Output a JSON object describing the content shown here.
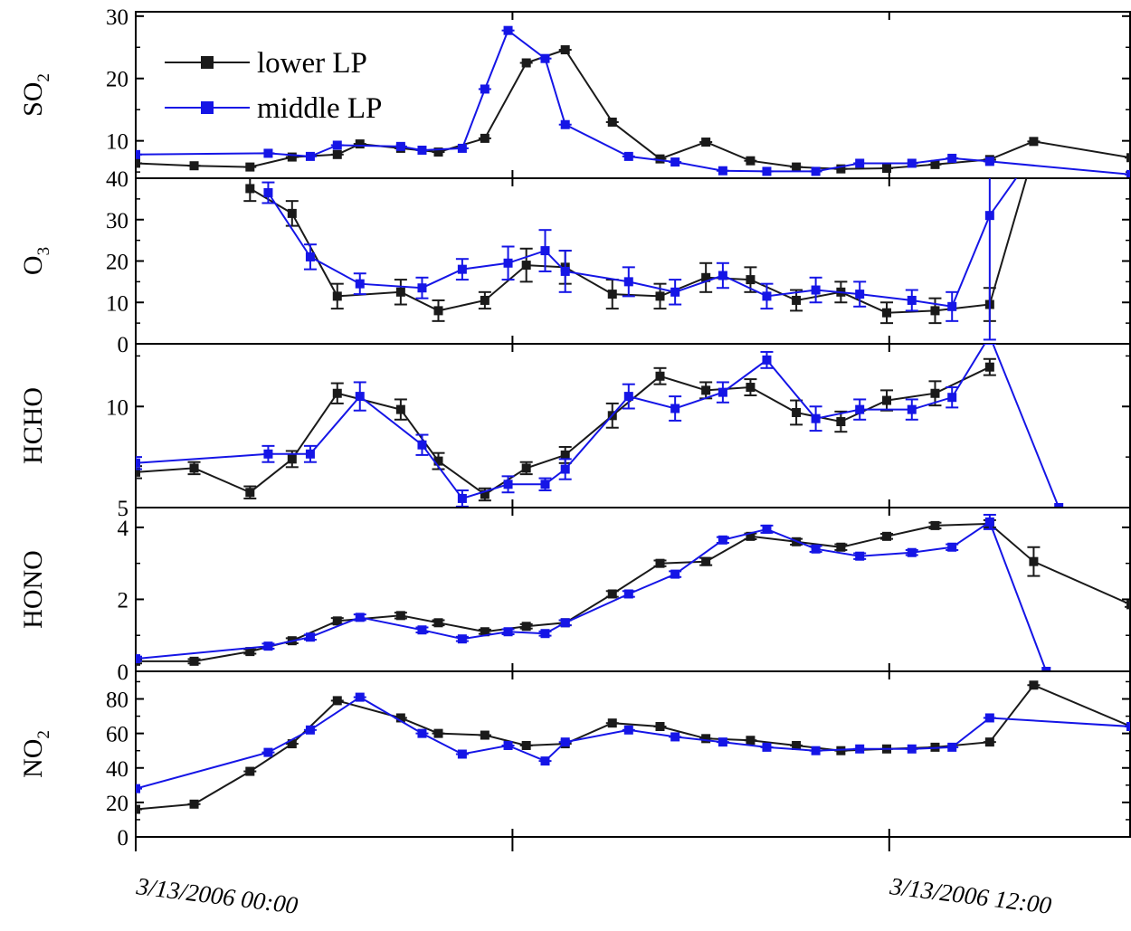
{
  "colors": {
    "lower": "#1a1a1a",
    "middle": "#1515e6",
    "frame": "#000000"
  },
  "legend": {
    "lower_label": "lower LP",
    "middle_label": "middle LP",
    "placement": "top-left"
  },
  "x_axis": {
    "tick_labels": [
      "3/13/2006 00:00",
      "3/13/2006 12:00"
    ],
    "tick_values": [
      0,
      12
    ],
    "minor_tick_values": [
      6
    ],
    "xlim": [
      0,
      15.85
    ]
  },
  "chart_data": {
    "type": "line",
    "x_unit": "hours after 3/13/2006 00:00",
    "panels": [
      {
        "key": "so2",
        "ylabel": "SO",
        "ylabel_sub": "2",
        "ylim": [
          4,
          30.7
        ],
        "ticks": [
          10,
          20,
          30
        ],
        "tick_labels": [
          "10",
          "20",
          "30"
        ],
        "series": [
          {
            "name": "lower LP",
            "errorbars": false,
            "x": [
              0,
              0.93,
              1.82,
              2.49,
              3.21,
              3.57,
              4.22,
              4.82,
              5.56,
              6.22,
              6.84,
              7.59,
              8.35,
              9.08,
              9.79,
              10.52,
              11.23,
              11.96,
              12.73,
              13.6,
              14.3,
              15.85
            ],
            "y": [
              6.4,
              6.0,
              5.8,
              7.4,
              7.8,
              9.5,
              8.8,
              8.2,
              10.4,
              22.5,
              24.6,
              13.0,
              7.1,
              9.8,
              6.8,
              5.8,
              5.5,
              5.6,
              6.2,
              7.0,
              9.9,
              7.3
            ],
            "err": []
          },
          {
            "name": "middle LP",
            "errorbars": false,
            "x": [
              0,
              2.11,
              2.78,
              3.21,
              4.22,
              4.56,
              5.2,
              5.56,
              5.93,
              6.52,
              6.84,
              7.85,
              8.59,
              9.35,
              10.05,
              10.83,
              11.53,
              12.36,
              13.0,
              13.6,
              15.85
            ],
            "y": [
              7.8,
              8.0,
              7.5,
              9.3,
              9.1,
              8.5,
              8.8,
              18.3,
              27.7,
              23.2,
              12.6,
              7.5,
              6.6,
              5.2,
              5.1,
              5.1,
              6.4,
              6.4,
              7.2,
              6.7,
              4.6
            ],
            "err": []
          }
        ]
      },
      {
        "key": "o3",
        "ylabel": "O",
        "ylabel_sub": "3",
        "ylim": [
          0,
          40
        ],
        "ticks": [
          0,
          10,
          20,
          30,
          40
        ],
        "tick_labels": [
          "0",
          "10",
          "20",
          "30",
          "40"
        ],
        "series": [
          {
            "name": "lower LP",
            "errorbars": true,
            "x": [
              1.82,
              2.49,
              3.21,
              4.22,
              4.82,
              5.56,
              6.22,
              6.84,
              7.59,
              8.35,
              9.08,
              9.79,
              10.52,
              11.23,
              11.96,
              12.73,
              13.6,
              14.3
            ],
            "y": [
              37.5,
              31.5,
              11.5,
              12.5,
              8.0,
              10.5,
              19.0,
              18.5,
              12.0,
              11.5,
              16.0,
              15.5,
              10.5,
              12.5,
              7.5,
              8.0,
              9.5,
              46.0
            ],
            "err": [
              3.0,
              3.0,
              3.0,
              3.0,
              2.5,
              2.0,
              4.0,
              4.0,
              3.5,
              3.0,
              3.5,
              3.0,
              2.5,
              2.5,
              2.5,
              3.0,
              4.0,
              4.0
            ]
          },
          {
            "name": "middle LP",
            "errorbars": true,
            "x": [
              2.11,
              2.78,
              3.57,
              4.56,
              5.2,
              5.93,
              6.52,
              6.84,
              7.85,
              8.59,
              9.35,
              10.05,
              10.83,
              11.53,
              12.36,
              13.0,
              13.6,
              14.3
            ],
            "y": [
              36.5,
              21.0,
              14.5,
              13.5,
              18.0,
              19.5,
              22.5,
              17.5,
              15.0,
              12.5,
              16.5,
              11.5,
              13.0,
              12.0,
              10.5,
              9.0,
              31.0,
              46.0
            ],
            "err": [
              2.5,
              3.0,
              2.5,
              2.5,
              2.5,
              4.0,
              5.0,
              5.0,
              3.5,
              3.0,
              3.0,
              3.0,
              3.0,
              3.0,
              2.5,
              3.5,
              30.0,
              4.0
            ]
          }
        ]
      },
      {
        "key": "hcho",
        "ylabel": "HCHO",
        "ylabel_sub": "",
        "ylim": [
          5,
          13.1
        ],
        "ticks": [
          5,
          10
        ],
        "tick_labels": [
          "5",
          "10"
        ],
        "series": [
          {
            "name": "lower LP",
            "errorbars": true,
            "x": [
              0,
              0.93,
              1.82,
              2.49,
              3.21,
              4.22,
              4.82,
              5.56,
              6.22,
              6.84,
              7.59,
              8.35,
              9.08,
              9.79,
              10.52,
              11.23,
              11.96,
              12.73,
              13.6
            ],
            "y": [
              6.75,
              6.95,
              5.75,
              7.4,
              10.65,
              9.85,
              7.3,
              5.65,
              6.95,
              7.6,
              9.55,
              11.5,
              10.8,
              10.95,
              9.7,
              9.25,
              10.3,
              10.65,
              11.95
            ],
            "err": [
              0.3,
              0.3,
              0.3,
              0.4,
              0.5,
              0.5,
              0.4,
              0.3,
              0.3,
              0.4,
              0.6,
              0.4,
              0.4,
              0.4,
              0.6,
              0.5,
              0.5,
              0.6,
              0.4
            ]
          },
          {
            "name": "middle LP",
            "errorbars": true,
            "x": [
              0,
              2.11,
              2.78,
              3.57,
              4.56,
              5.2,
              5.93,
              6.52,
              6.84,
              7.85,
              8.59,
              9.35,
              10.05,
              10.83,
              11.53,
              12.36,
              13.0,
              13.6,
              14.7
            ],
            "y": [
              7.2,
              7.65,
              7.65,
              10.5,
              8.1,
              5.45,
              6.15,
              6.15,
              6.9,
              10.5,
              9.9,
              10.7,
              12.3,
              9.4,
              9.85,
              9.85,
              10.45,
              13.5,
              5.0
            ],
            "err": [
              0.3,
              0.4,
              0.4,
              0.7,
              0.5,
              0.4,
              0.4,
              0.3,
              0.5,
              0.6,
              0.6,
              0.5,
              0.4,
              0.6,
              0.5,
              0.5,
              0.5,
              0.4,
              0.0
            ]
          }
        ]
      },
      {
        "key": "hono",
        "ylabel": "HONO",
        "ylabel_sub": "",
        "ylim": [
          0,
          4.55
        ],
        "ticks": [
          0,
          2,
          4
        ],
        "tick_labels": [
          "0",
          "2",
          "4"
        ],
        "series": [
          {
            "name": "lower LP",
            "errorbars": true,
            "x": [
              0,
              0.93,
              1.82,
              2.49,
              3.21,
              4.22,
              4.82,
              5.56,
              6.22,
              6.84,
              7.59,
              8.35,
              9.08,
              9.79,
              10.52,
              11.23,
              11.96,
              12.73,
              13.6,
              14.3,
              15.85
            ],
            "y": [
              0.28,
              0.28,
              0.55,
              0.85,
              1.4,
              1.55,
              1.35,
              1.1,
              1.25,
              1.35,
              2.15,
              3.0,
              3.05,
              3.75,
              3.6,
              3.45,
              3.75,
              4.05,
              4.1,
              3.05,
              1.85
            ],
            "err": [
              0.06,
              0.06,
              0.06,
              0.07,
              0.08,
              0.08,
              0.07,
              0.06,
              0.06,
              0.07,
              0.08,
              0.08,
              0.1,
              0.08,
              0.08,
              0.08,
              0.07,
              0.08,
              0.1,
              0.4,
              0.06
            ]
          },
          {
            "name": "middle LP",
            "errorbars": true,
            "x": [
              0,
              2.11,
              2.78,
              3.57,
              4.56,
              5.2,
              5.93,
              6.52,
              6.84,
              7.85,
              8.59,
              9.35,
              10.05,
              10.83,
              11.53,
              12.36,
              13.0,
              13.6,
              14.5
            ],
            "y": [
              0.35,
              0.7,
              0.95,
              1.5,
              1.15,
              0.9,
              1.1,
              1.05,
              1.35,
              2.15,
              2.7,
              3.65,
              3.95,
              3.4,
              3.2,
              3.3,
              3.45,
              4.15,
              0.0
            ],
            "err": [
              0.06,
              0.07,
              0.07,
              0.08,
              0.07,
              0.06,
              0.07,
              0.06,
              0.07,
              0.08,
              0.08,
              0.08,
              0.1,
              0.08,
              0.08,
              0.07,
              0.08,
              0.2,
              0.0
            ]
          }
        ]
      },
      {
        "key": "no2",
        "ylabel": "NO",
        "ylabel_sub": "2",
        "ylim": [
          0,
          96
        ],
        "ticks": [
          0,
          20,
          40,
          60,
          80
        ],
        "tick_labels": [
          "0",
          "20",
          "40",
          "60",
          "80"
        ],
        "series": [
          {
            "name": "lower LP",
            "errorbars": false,
            "x": [
              0,
              0.93,
              1.82,
              2.49,
              3.21,
              4.22,
              4.82,
              5.56,
              6.22,
              6.84,
              7.59,
              8.35,
              9.08,
              9.79,
              10.52,
              11.23,
              11.96,
              12.73,
              13.6,
              14.3,
              15.85
            ],
            "y": [
              16,
              19,
              38,
              54,
              79,
              69,
              60,
              59,
              53,
              54,
              66,
              64,
              57,
              56,
              53,
              50,
              51,
              52,
              55,
              88,
              64
            ],
            "err": []
          },
          {
            "name": "middle LP",
            "errorbars": false,
            "x": [
              0,
              2.11,
              2.78,
              3.57,
              4.56,
              5.2,
              5.93,
              6.52,
              6.84,
              7.85,
              8.59,
              9.35,
              10.05,
              10.83,
              11.53,
              12.36,
              13.0,
              13.6,
              15.85
            ],
            "y": [
              28,
              49,
              62,
              81,
              60,
              48,
              53,
              44,
              55,
              62,
              58,
              55,
              52,
              50,
              51,
              51,
              52,
              69,
              64
            ],
            "err": []
          }
        ]
      }
    ]
  }
}
